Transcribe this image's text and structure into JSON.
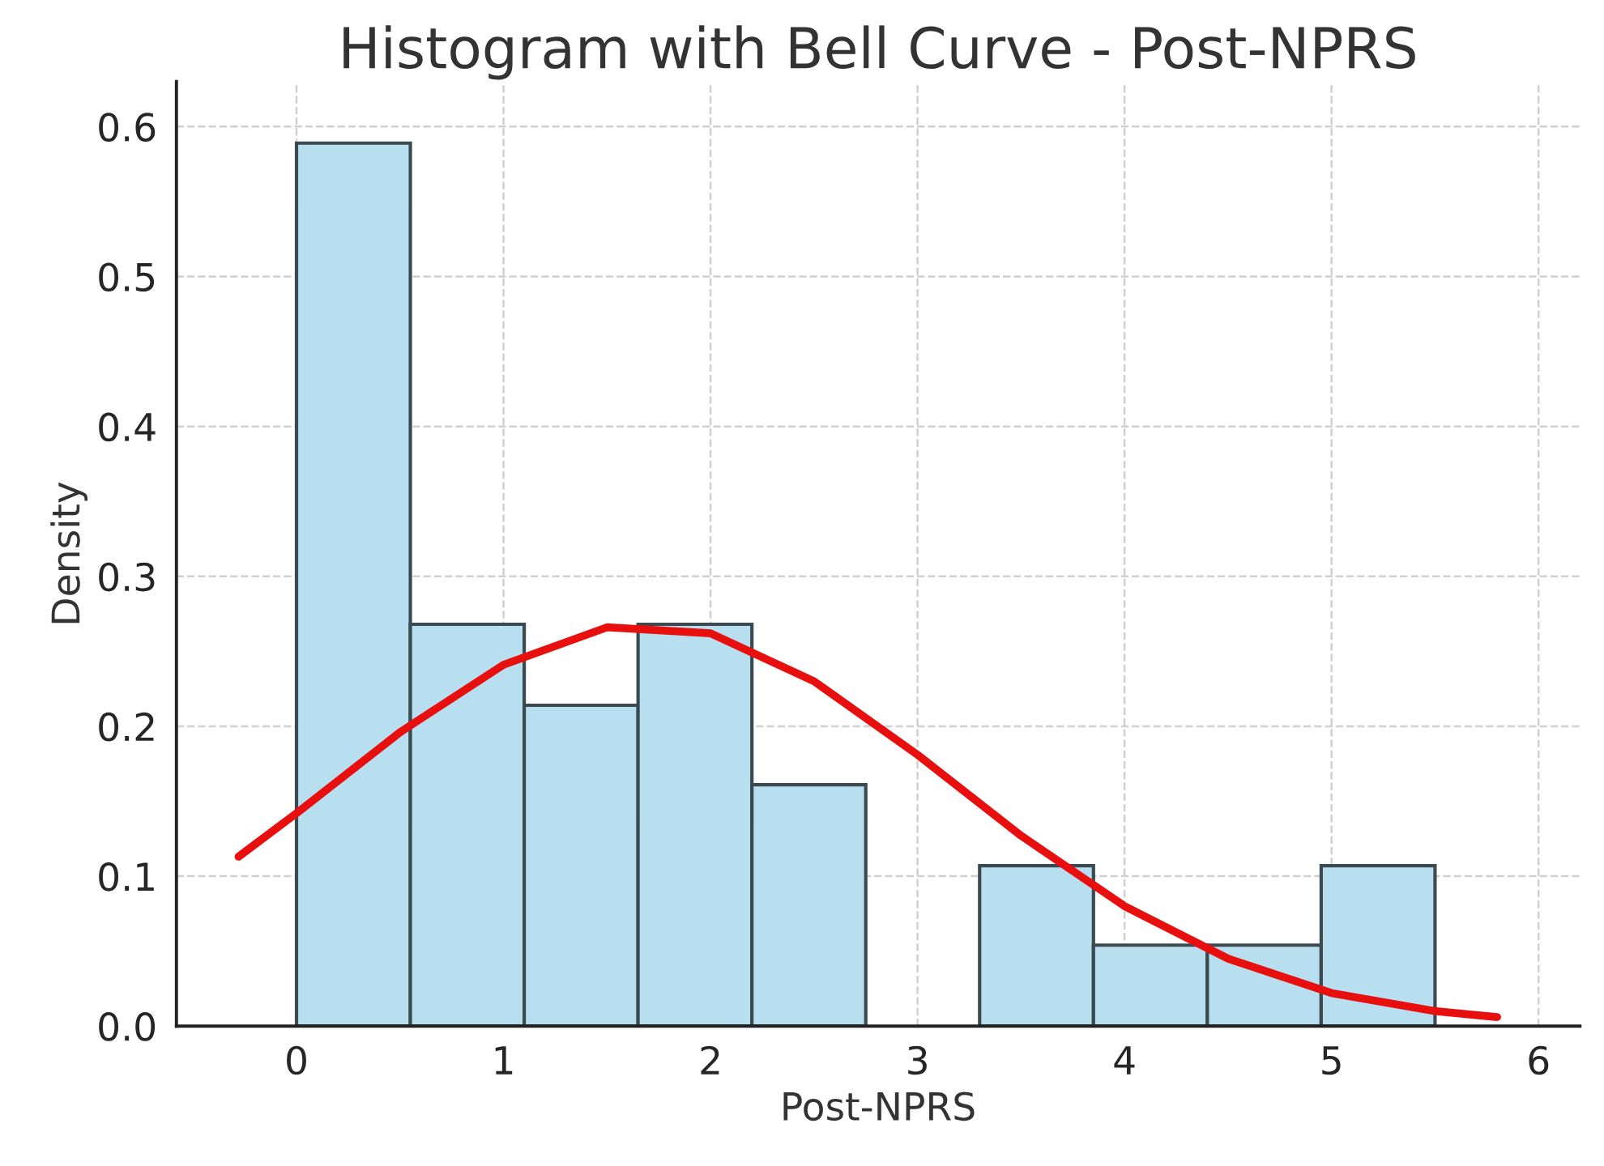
{
  "chart_data": {
    "type": "histogram",
    "title": "Histogram with Bell Curve - Post-NPRS",
    "xlabel": "Post-NPRS",
    "ylabel": "Density",
    "series": [
      {
        "color": "#b7dff0",
        "bins": [
          0,
          0.55,
          1.1,
          1.65,
          2.2,
          2.75,
          3.3,
          3.85,
          4.4,
          4.95,
          5.5
        ],
        "values": [
          0.589,
          0.268,
          0.214,
          0.268,
          0.161,
          0,
          0.107,
          0.054,
          0.054,
          0.107
        ]
      },
      {
        "type": "line",
        "color": "#e8100f",
        "x": [
          -0.28,
          0,
          0.5,
          1,
          1.5,
          2,
          2.5,
          3,
          3.5,
          4,
          4.5,
          5,
          5.5,
          5.8
        ],
        "values": [
          0.113,
          0.142,
          0.196,
          0.241,
          0.266,
          0.262,
          0.23,
          0.181,
          0.127,
          0.08,
          0.045,
          0.022,
          0.01,
          0.006
        ]
      }
    ],
    "xlim": [
      -0.58,
      6.2
    ],
    "ylim": [
      0,
      0.63
    ],
    "xticks": [
      0,
      1,
      2,
      3,
      4,
      5,
      6
    ],
    "yticks": [
      {
        "value": 0,
        "label": "0.0"
      },
      0.1,
      0.2,
      0.3,
      0.4,
      0.5,
      0.6
    ],
    "grid": true
  }
}
